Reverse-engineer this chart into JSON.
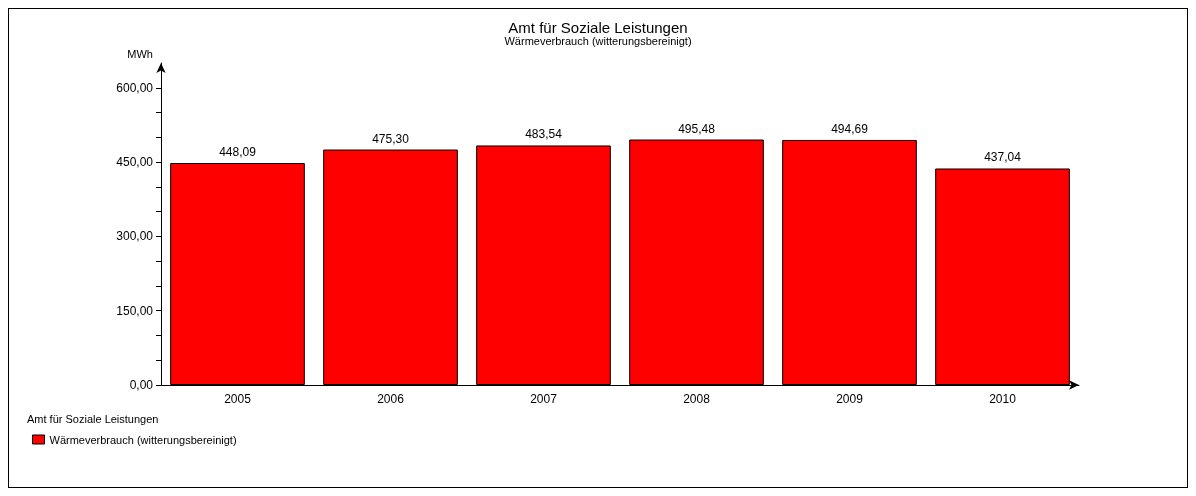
{
  "chart_data": {
    "type": "bar",
    "title": "Amt für Soziale Leistungen",
    "subtitle": "Wärmeverbrauch (witterungsbereinigt)",
    "ylabel": "MWh",
    "legend_title": "Amt für Soziale Leistungen",
    "categories": [
      "2005",
      "2006",
      "2007",
      "2008",
      "2009",
      "2010"
    ],
    "series": [
      {
        "name": "Wärmeverbrauch (witterungsbereinigt)",
        "color": "#ff0000",
        "values": [
          448.09,
          475.3,
          483.54,
          495.48,
          494.69,
          437.04
        ],
        "value_labels": [
          "448,09",
          "475,30",
          "483,54",
          "495,48",
          "494,69",
          "437,04"
        ]
      }
    ],
    "ylim": [
      0,
      650
    ],
    "yticks": [
      {
        "value": 0,
        "label": "0,00"
      },
      {
        "value": 50,
        "label": null
      },
      {
        "value": 100,
        "label": null
      },
      {
        "value": 150,
        "label": "150,00"
      },
      {
        "value": 200,
        "label": null
      },
      {
        "value": 250,
        "label": null
      },
      {
        "value": 300,
        "label": "300,00"
      },
      {
        "value": 350,
        "label": null
      },
      {
        "value": 400,
        "label": null
      },
      {
        "value": 450,
        "label": "450,00"
      },
      {
        "value": 500,
        "label": null
      },
      {
        "value": 550,
        "label": null
      },
      {
        "value": 600,
        "label": "600,00"
      }
    ],
    "grid": false,
    "legend": "bottom left"
  }
}
